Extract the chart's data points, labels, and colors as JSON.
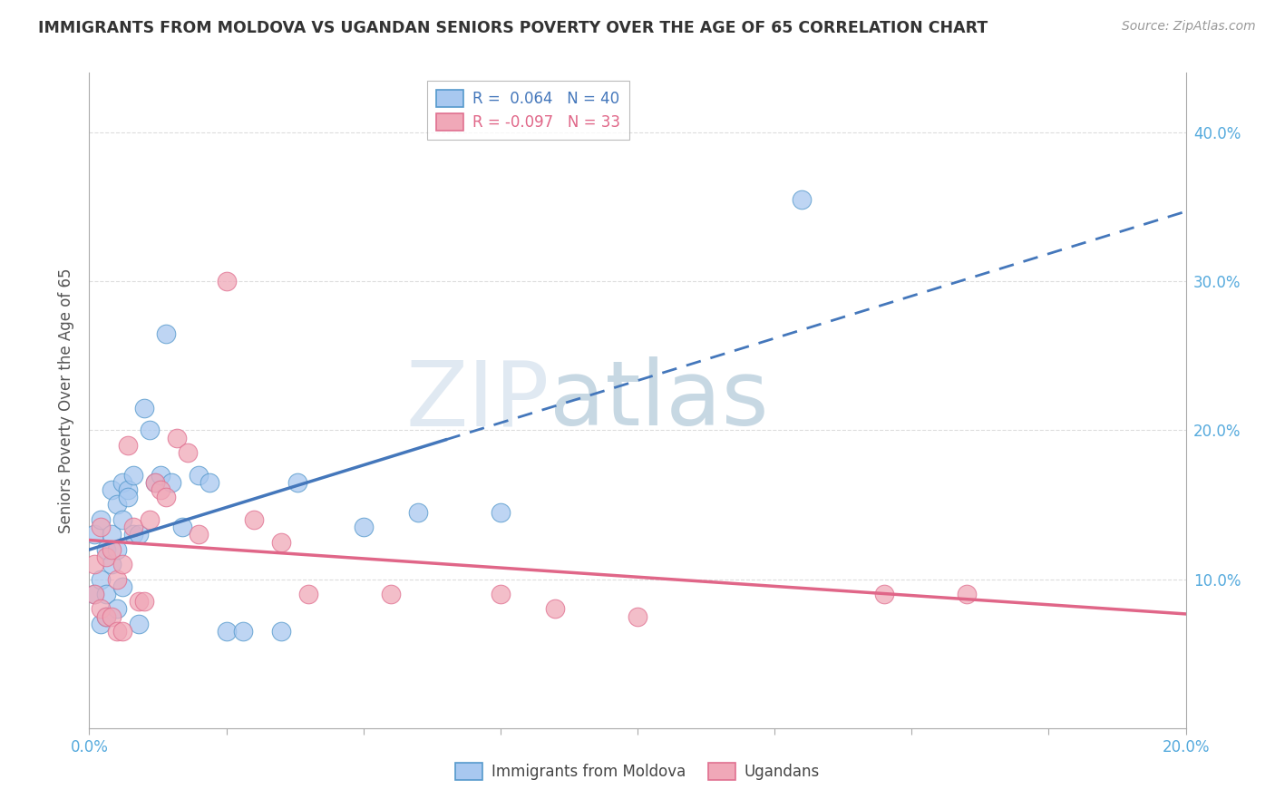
{
  "title": "IMMIGRANTS FROM MOLDOVA VS UGANDAN SENIORS POVERTY OVER THE AGE OF 65 CORRELATION CHART",
  "source": "Source: ZipAtlas.com",
  "ylabel": "Seniors Poverty Over the Age of 65",
  "xlim": [
    0.0,
    0.2
  ],
  "ylim": [
    0.0,
    0.44
  ],
  "xticks": [
    0.0,
    0.025,
    0.05,
    0.075,
    0.1,
    0.125,
    0.15,
    0.175,
    0.2
  ],
  "yticks": [
    0.0,
    0.1,
    0.2,
    0.3,
    0.4
  ],
  "ytick_labels_right": [
    "",
    "10.0%",
    "20.0%",
    "30.0%",
    "40.0%"
  ],
  "watermark_zip": "ZIP",
  "watermark_atlas": "atlas",
  "moldova_color": "#a8c8f0",
  "uganda_color": "#f0a8b8",
  "moldova_edge_color": "#5599cc",
  "uganda_edge_color": "#e07090",
  "moldova_trend_color": "#4477bb",
  "uganda_trend_color": "#e06688",
  "moldova_scatter_x": [
    0.001,
    0.001,
    0.002,
    0.002,
    0.002,
    0.003,
    0.003,
    0.003,
    0.004,
    0.004,
    0.004,
    0.005,
    0.005,
    0.005,
    0.006,
    0.006,
    0.006,
    0.007,
    0.007,
    0.008,
    0.008,
    0.009,
    0.009,
    0.01,
    0.011,
    0.012,
    0.013,
    0.014,
    0.015,
    0.017,
    0.02,
    0.022,
    0.025,
    0.028,
    0.035,
    0.038,
    0.05,
    0.06,
    0.075,
    0.13
  ],
  "moldova_scatter_y": [
    0.13,
    0.09,
    0.14,
    0.1,
    0.07,
    0.12,
    0.09,
    0.075,
    0.16,
    0.13,
    0.11,
    0.15,
    0.12,
    0.08,
    0.165,
    0.14,
    0.095,
    0.16,
    0.155,
    0.17,
    0.13,
    0.13,
    0.07,
    0.215,
    0.2,
    0.165,
    0.17,
    0.265,
    0.165,
    0.135,
    0.17,
    0.165,
    0.065,
    0.065,
    0.065,
    0.165,
    0.135,
    0.145,
    0.145,
    0.355
  ],
  "uganda_scatter_x": [
    0.001,
    0.001,
    0.002,
    0.002,
    0.003,
    0.003,
    0.004,
    0.004,
    0.005,
    0.005,
    0.006,
    0.006,
    0.007,
    0.008,
    0.009,
    0.01,
    0.011,
    0.012,
    0.013,
    0.014,
    0.016,
    0.018,
    0.02,
    0.025,
    0.03,
    0.035,
    0.04,
    0.055,
    0.075,
    0.085,
    0.1,
    0.145,
    0.16
  ],
  "uganda_scatter_y": [
    0.11,
    0.09,
    0.135,
    0.08,
    0.115,
    0.075,
    0.12,
    0.075,
    0.1,
    0.065,
    0.11,
    0.065,
    0.19,
    0.135,
    0.085,
    0.085,
    0.14,
    0.165,
    0.16,
    0.155,
    0.195,
    0.185,
    0.13,
    0.3,
    0.14,
    0.125,
    0.09,
    0.09,
    0.09,
    0.08,
    0.075,
    0.09,
    0.09
  ],
  "moldova_trend_solid_end": 0.065,
  "tick_color": "#55aadd",
  "grid_color": "#dddddd",
  "spine_color": "#aaaaaa"
}
